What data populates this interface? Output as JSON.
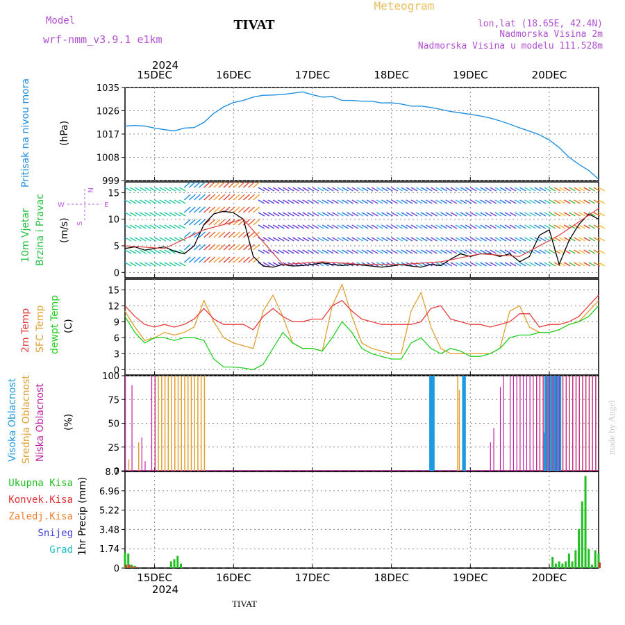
{
  "header": {
    "model_label": "Model",
    "model_name": "wrf-nmm_v3.9.1  e1km",
    "title": "TIVAT",
    "subtitle": "Meteogram",
    "lonlat": "lon,lat (18.65E, 42.4N)",
    "elevation": "Nadmorska Visina 2m",
    "model_elevation": "Nadmorska Visina u modelu 111.528m",
    "credit": "made by Angel",
    "footer": "TIVAT"
  },
  "colors": {
    "pressure": "#1e90e0",
    "temp2m": "#e83c3c",
    "sfc": "#e0a030",
    "dewpt": "#20d020",
    "high_cloud": "#1e9be0",
    "mid_cloud": "#e0a030",
    "low_cloud": "#c020a0",
    "precip_total": "#20c020",
    "precip_conv": "#e03030",
    "precip_freezing": "#f08030",
    "snow": "#4040e0",
    "hail": "#20c0c0",
    "wind_dir": "#c060e0"
  },
  "chart_data": [
    {
      "type": "line",
      "panel": "pressure",
      "ylabel_main": "Pritisak na nivou mora",
      "ylabel_unit": "(hPa)",
      "yticks": [
        "1035",
        "1026",
        "1017",
        "1008",
        "999"
      ],
      "ylim": [
        999,
        1035
      ],
      "xlim": [
        0,
        144
      ],
      "top_year": "2024",
      "day_labels": [
        "15DEC",
        "16DEC",
        "17DEC",
        "18DEC",
        "19DEC",
        "20DEC"
      ],
      "bottom_year": "2024",
      "grid": true,
      "series": [
        {
          "x": [
            0,
            3,
            6,
            9,
            12,
            15,
            18,
            21,
            24,
            27,
            30,
            33,
            36,
            39,
            42,
            45,
            48,
            51,
            54,
            57,
            60,
            63,
            66,
            69,
            72,
            75,
            78,
            81,
            84,
            87,
            90,
            93,
            96,
            99,
            102,
            105,
            108,
            111,
            114,
            117,
            120,
            123,
            126,
            129,
            132,
            135,
            138,
            141,
            144
          ],
          "values": [
            1020.1,
            1020.3,
            1020.1,
            1019.3,
            1018.7,
            1018.2,
            1019.3,
            1019.5,
            1021.5,
            1025,
            1027.5,
            1029.2,
            1030,
            1031.3,
            1032,
            1032.1,
            1032.3,
            1032.8,
            1033.3,
            1032.2,
            1031.3,
            1031.5,
            1030,
            1030,
            1029.7,
            1029.7,
            1029,
            1029.1,
            1028.6,
            1027.8,
            1027.8,
            1027.3,
            1026.5,
            1025.7,
            1025.2,
            1024.6,
            1024,
            1023.2,
            1022.1,
            1020.8,
            1019.4,
            1018.1,
            1016.7,
            1014.7,
            1011.8,
            1008,
            1005.3,
            1002.9,
            999.5
          ]
        }
      ]
    },
    {
      "type": "line",
      "panel": "wind",
      "ylabel_main": "10m Vjetar",
      "ylabel_second": "Brzina i Pravac",
      "ylabel_unit": "(m/s)",
      "compass": [
        "N",
        "W",
        "E",
        "S"
      ],
      "yticks": [
        "15",
        "10",
        "5",
        "0"
      ],
      "ylim": [
        -1,
        17
      ],
      "grid": true,
      "series": [
        {
          "name": "speed",
          "x": [
            0,
            3,
            6,
            9,
            12,
            15,
            18,
            21,
            24,
            27,
            30,
            33,
            36,
            39,
            42,
            45,
            48,
            51,
            54,
            57,
            60,
            63,
            66,
            69,
            72,
            75,
            78,
            81,
            84,
            87,
            90,
            93,
            96,
            99,
            102,
            105,
            108,
            111,
            114,
            117,
            120,
            123,
            126,
            129,
            132,
            135,
            138,
            141,
            144
          ],
          "values": [
            4.5,
            4.8,
            4.2,
            4.5,
            4.8,
            4,
            3.5,
            5,
            9,
            11,
            11.5,
            11.2,
            10,
            3,
            1.2,
            1,
            1.5,
            1.2,
            1.3,
            1.5,
            1.8,
            1.5,
            1.3,
            1.5,
            1.4,
            1.2,
            1,
            1.2,
            1.5,
            1.2,
            1,
            1.5,
            1.3,
            2.5,
            3.5,
            3,
            3.5,
            3.5,
            3,
            3.5,
            2,
            3,
            7,
            8,
            1.5,
            6,
            9,
            11,
            10
          ]
        },
        {
          "name": "gust",
          "x": [
            0,
            12,
            24,
            36,
            48,
            60,
            72,
            84,
            96,
            108,
            120,
            132,
            144
          ],
          "values": [
            5,
            4.5,
            8,
            10,
            1.5,
            2,
            1.5,
            1.5,
            2,
            3.5,
            3,
            7,
            12
          ]
        }
      ]
    },
    {
      "type": "line",
      "panel": "temperature",
      "ylabels": [
        "2m Temp",
        "SFC Temp",
        "dewpt Temp"
      ],
      "ylabel_unit": "(C)",
      "yticks": [
        "15",
        "12",
        "9",
        "6",
        "3",
        "0"
      ],
      "ylim": [
        -1,
        17
      ],
      "grid": true,
      "series": [
        {
          "name": "2m Temp",
          "x": [
            0,
            3,
            6,
            9,
            12,
            15,
            18,
            21,
            24,
            27,
            30,
            33,
            36,
            39,
            42,
            45,
            48,
            51,
            54,
            57,
            60,
            63,
            66,
            69,
            72,
            75,
            78,
            81,
            84,
            87,
            90,
            93,
            96,
            99,
            102,
            105,
            108,
            111,
            114,
            117,
            120,
            123,
            126,
            129,
            132,
            135,
            138,
            141,
            144
          ],
          "values": [
            12,
            10,
            8.5,
            8,
            8.5,
            8,
            8.5,
            9.5,
            11.5,
            9.5,
            8.5,
            8.5,
            8.5,
            7.5,
            10,
            11.5,
            10,
            9,
            9,
            9.5,
            9.5,
            12,
            13,
            11,
            9.5,
            9,
            8.5,
            8.5,
            8.5,
            8.5,
            9,
            11.5,
            12,
            9.5,
            9,
            8.5,
            8.5,
            8,
            8.5,
            9,
            10.5,
            10.5,
            8,
            8.5,
            8.5,
            9,
            10,
            12,
            14
          ]
        },
        {
          "name": "SFC Temp",
          "x": [
            0,
            3,
            6,
            9,
            12,
            15,
            18,
            21,
            24,
            27,
            30,
            33,
            36,
            39,
            42,
            45,
            48,
            51,
            54,
            57,
            60,
            63,
            66,
            69,
            72,
            75,
            78,
            81,
            84,
            87,
            90,
            93,
            96,
            99,
            102,
            105,
            108,
            111,
            114,
            117,
            120,
            123,
            126,
            129,
            132,
            135,
            138,
            141,
            144
          ],
          "values": [
            11,
            8,
            5.5,
            6,
            7,
            6.5,
            7,
            8,
            13,
            9,
            6,
            5,
            4.5,
            4,
            11,
            14,
            10,
            5,
            4,
            4,
            3.5,
            12,
            16,
            10,
            5,
            4,
            3.5,
            3,
            3,
            11,
            14.5,
            8,
            4,
            3,
            3,
            3,
            3,
            3,
            4,
            11,
            12,
            8,
            7,
            7,
            7.5,
            8.5,
            9,
            11,
            13
          ]
        },
        {
          "name": "dewpt Temp",
          "x": [
            0,
            3,
            6,
            9,
            12,
            15,
            18,
            21,
            24,
            27,
            30,
            33,
            36,
            39,
            42,
            45,
            48,
            51,
            54,
            57,
            60,
            63,
            66,
            69,
            72,
            75,
            78,
            81,
            84,
            87,
            90,
            93,
            96,
            99,
            102,
            105,
            108,
            111,
            114,
            117,
            120,
            123,
            126,
            129,
            132,
            135,
            138,
            141,
            144
          ],
          "values": [
            10,
            7,
            5,
            6,
            6,
            5.5,
            6,
            6,
            5.5,
            2,
            0.5,
            0.5,
            0.3,
            0,
            1,
            4,
            7,
            5,
            4,
            4,
            3.5,
            6,
            9,
            7,
            4,
            3,
            2.5,
            2,
            2,
            5,
            6,
            4,
            3,
            4,
            3.5,
            2.5,
            2.5,
            3,
            4,
            6,
            6.5,
            6.5,
            7,
            7,
            7.5,
            8.5,
            9,
            10,
            12
          ]
        }
      ]
    },
    {
      "type": "bar",
      "panel": "clouds",
      "ylabels": [
        "Visoka Oblacnost",
        "Srednja Oblacnost",
        "Niska Oblacnost"
      ],
      "ylabel_unit": "(%)",
      "yticks": [
        "100",
        "75",
        "50",
        "25",
        "0"
      ],
      "ylim": [
        0,
        100
      ],
      "grid": true,
      "series": [
        {
          "name": "Visoka",
          "x": [
            92.5,
            93,
            93.5,
            102.5,
            103,
            127,
            127.5,
            128,
            128.5,
            129,
            129.5,
            130,
            130.5,
            131,
            131.5,
            132
          ],
          "values": [
            100,
            100,
            100,
            100,
            100,
            40,
            100,
            100,
            100,
            100,
            100,
            100,
            100,
            100,
            100,
            100
          ]
        },
        {
          "name": "Srednja",
          "x": [
            1,
            4,
            9,
            10,
            11,
            12,
            13,
            14,
            15,
            16,
            17,
            18,
            19,
            20,
            21,
            22,
            23,
            24,
            101,
            101.5,
            125,
            126,
            127,
            128,
            129,
            130,
            133,
            134,
            135,
            136,
            137,
            138,
            139,
            140,
            141,
            142,
            143
          ],
          "values": [
            12,
            30,
            100,
            100,
            100,
            100,
            100,
            100,
            100,
            100,
            100,
            100,
            100,
            100,
            100,
            100,
            100,
            100,
            100,
            85,
            100,
            100,
            100,
            100,
            100,
            100,
            100,
            100,
            100,
            100,
            100,
            100,
            100,
            100,
            100,
            100,
            100
          ]
        },
        {
          "name": "Niska",
          "x": [
            0,
            2,
            5,
            6,
            8,
            9,
            111,
            112,
            114,
            115,
            117,
            118,
            119,
            120,
            121,
            122,
            123,
            124,
            125,
            126,
            127,
            128,
            129,
            130,
            131,
            132,
            133,
            134,
            135,
            136,
            137,
            138,
            139,
            140,
            141,
            142,
            143
          ],
          "values": [
            100,
            90,
            35,
            10,
            100,
            100,
            30,
            45,
            88,
            100,
            100,
            100,
            100,
            100,
            100,
            100,
            100,
            100,
            100,
            100,
            100,
            100,
            100,
            100,
            100,
            100,
            100,
            100,
            100,
            100,
            100,
            100,
            100,
            100,
            100,
            100,
            100
          ]
        }
      ]
    },
    {
      "type": "bar",
      "panel": "precipitation",
      "legend": [
        "Ukupna  Kisa",
        "Konvek.Kisa",
        "Zaledj.Kisa",
        "Snijeg",
        "Grad"
      ],
      "ylabel_unit": "1hr Precip (mm)",
      "yticks": [
        "8.7",
        "6.96",
        "5.22",
        "3.48",
        "1.74",
        "0"
      ],
      "ylim": [
        0,
        8.7
      ],
      "grid": true,
      "series": [
        {
          "name": "Ukupna Kisa",
          "x": [
            0,
            1,
            2,
            3,
            14,
            15,
            16,
            17,
            130,
            131,
            132,
            133,
            134,
            135,
            136,
            137,
            138,
            139,
            140,
            141,
            142,
            143,
            144
          ],
          "values": [
            1.4,
            1.3,
            0.3,
            0.2,
            0.6,
            0.8,
            1.1,
            0.4,
            1.0,
            0.4,
            0.6,
            0.4,
            0.6,
            1.3,
            0.6,
            1.6,
            3.5,
            6.0,
            8.3,
            1.7,
            0.3,
            1.6,
            1.3
          ]
        },
        {
          "name": "Konvek.Kisa",
          "x": [
            0,
            1,
            2,
            3,
            144
          ],
          "values": [
            0.3,
            0.3,
            0.15,
            0.1,
            0.5
          ]
        }
      ]
    }
  ]
}
